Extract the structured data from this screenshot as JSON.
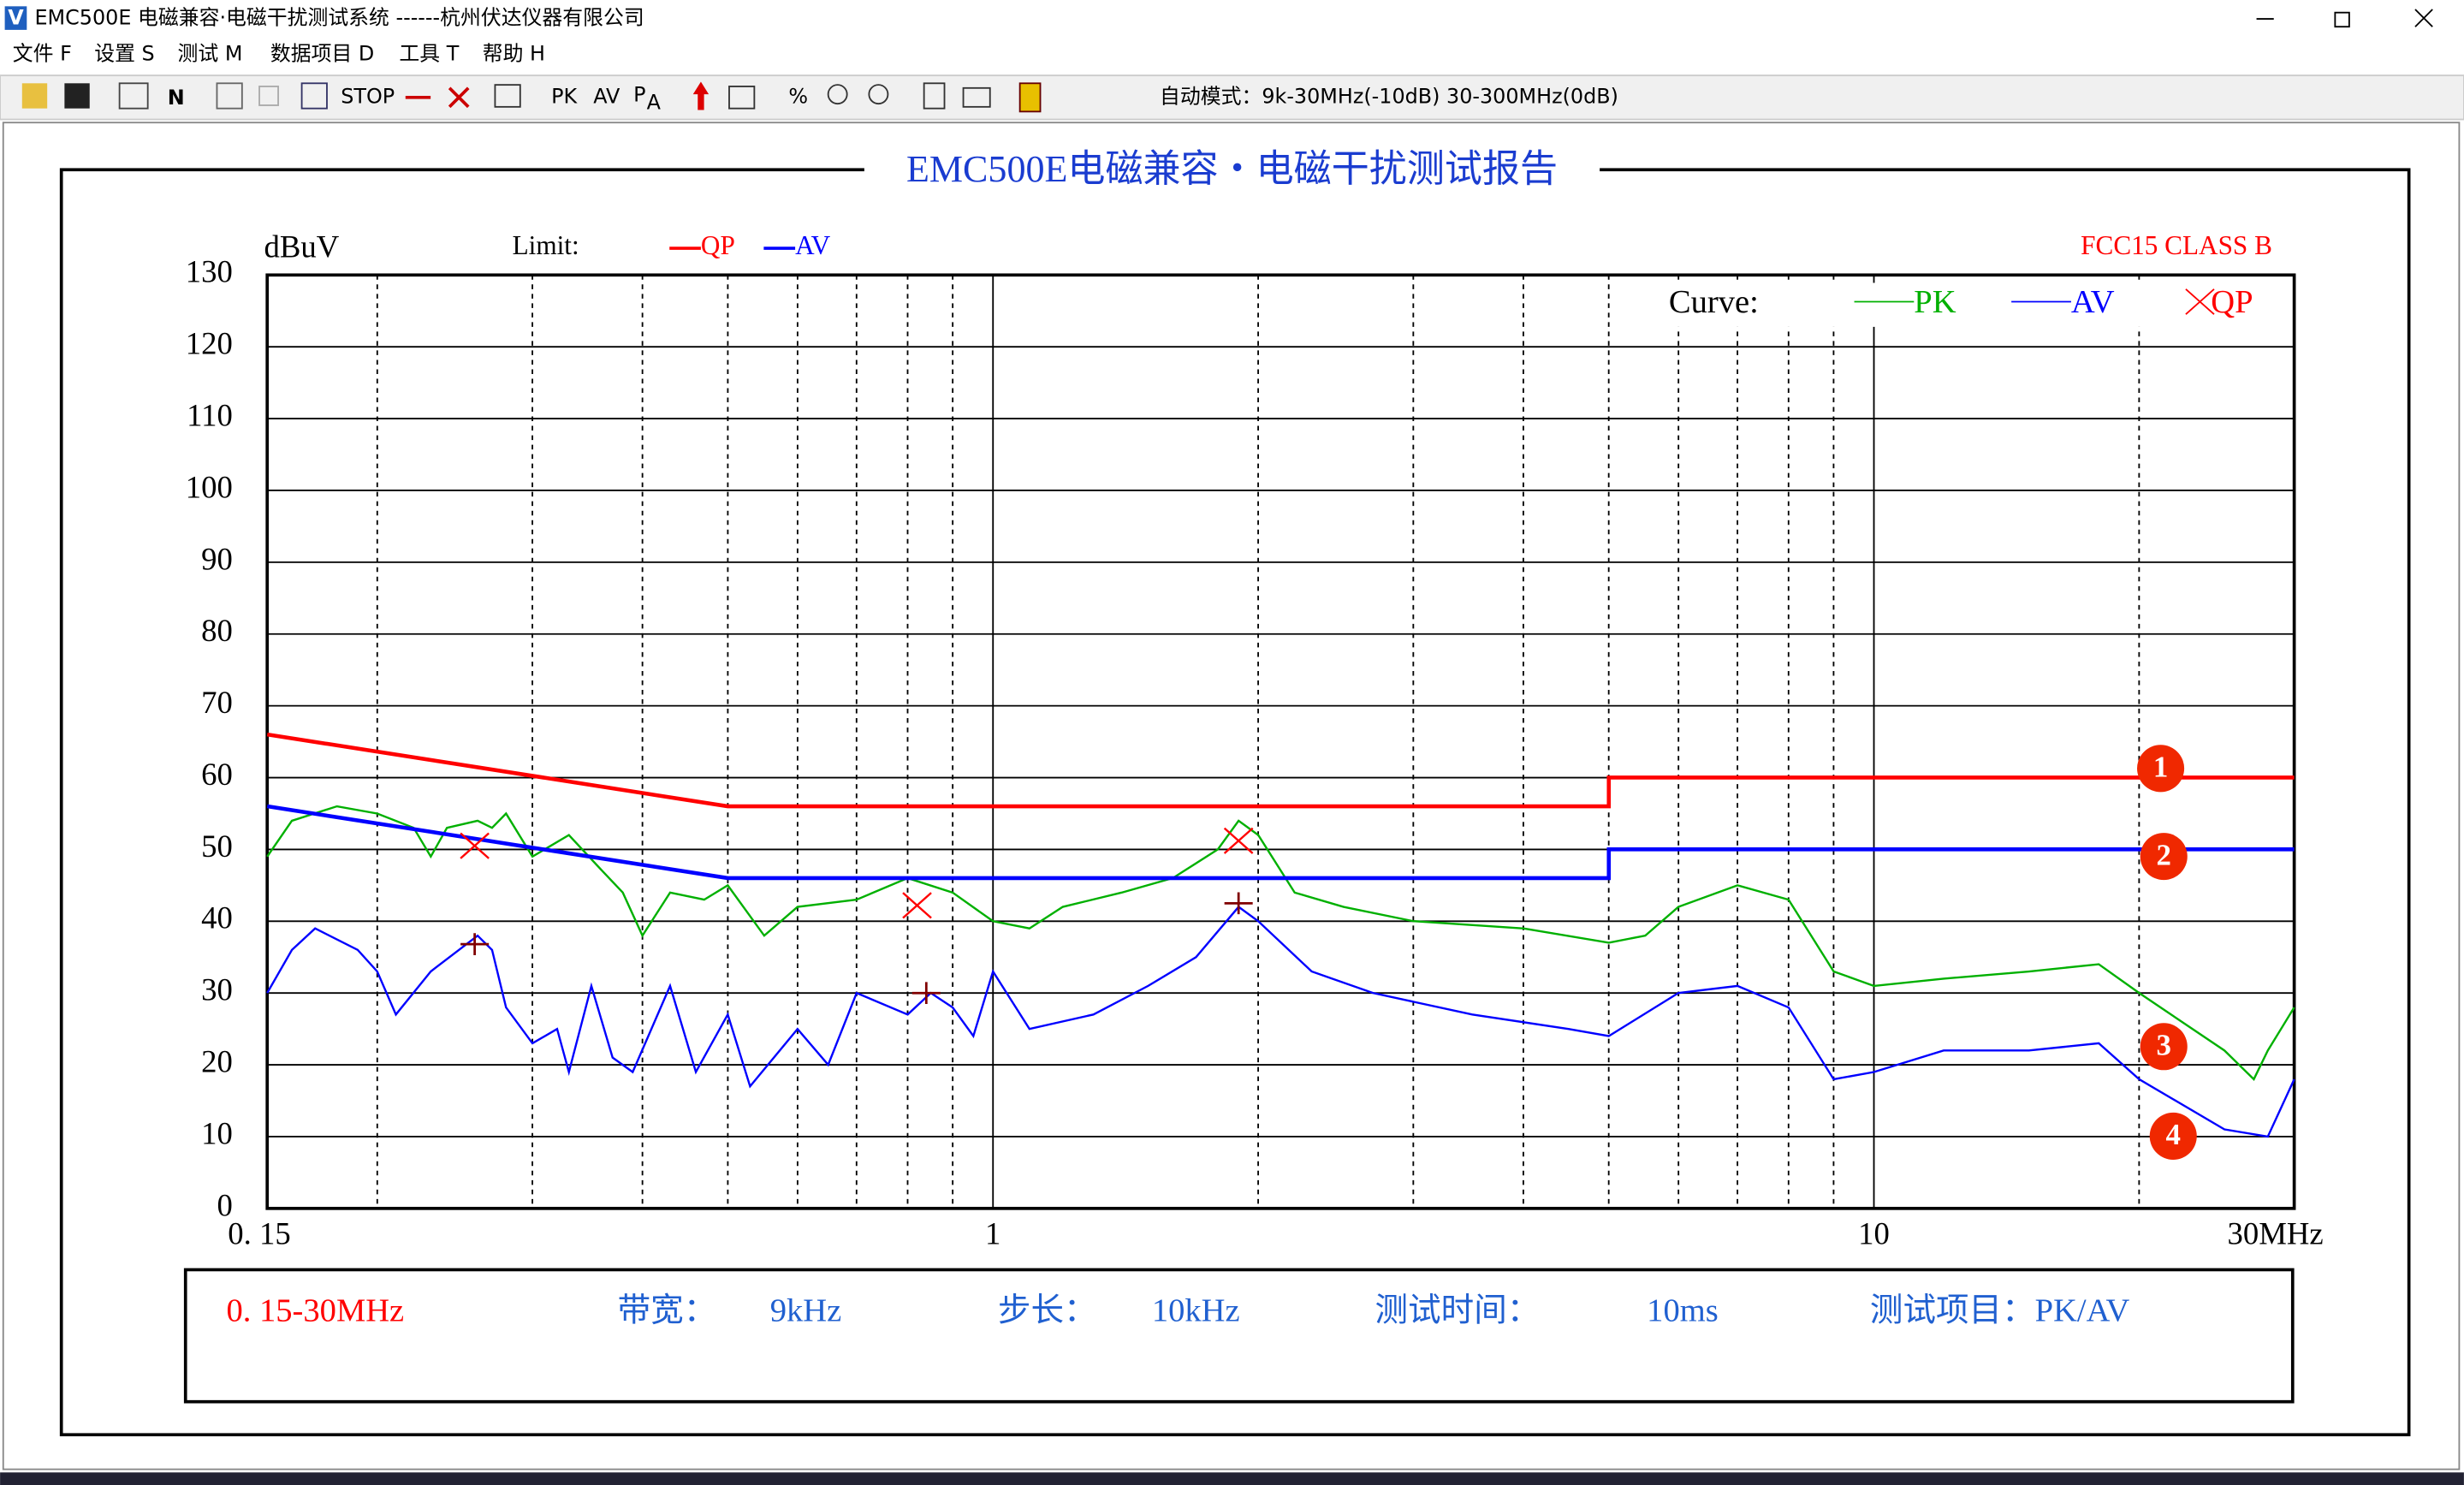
{
  "window": {
    "icon": "V",
    "title": "EMC500E 电磁兼容·电磁干扰测试系统  ------杭州伏达仪器有限公司"
  },
  "menu": [
    "文件 F",
    "设置 S",
    "测试 M",
    "数据项目 D",
    "工具 T",
    "帮助 H"
  ],
  "toolbar": {
    "buttons": [
      "N",
      "STOP",
      "PK",
      "AV",
      "P",
      "A"
    ],
    "auto_mode": "自动模式：9k-30MHz(-10dB) 30-300MHz(0dB)"
  },
  "report_title": "EMC500E电磁兼容・电磁干扰测试报告",
  "chart_data": {
    "type": "line",
    "ylabel": "dBuV",
    "standard": "FCC15 CLASS B",
    "limit_legend_title": "Limit:",
    "curve_legend_title": "Curve:",
    "xscale": "log",
    "xlim": [
      0.15,
      30
    ],
    "xticks": [
      {
        "value": 0.15,
        "label": "0. 15"
      },
      1,
      10,
      {
        "value": 30,
        "label": "30MHz"
      }
    ],
    "x_minor_grid": [
      0.2,
      0.3,
      0.4,
      0.5,
      0.6,
      0.7,
      0.8,
      0.9,
      2,
      3,
      4,
      5,
      6,
      7,
      8,
      9,
      20
    ],
    "ylim": [
      0,
      130
    ],
    "yticks": [
      0,
      10,
      20,
      30,
      40,
      50,
      60,
      70,
      80,
      90,
      100,
      110,
      120,
      130
    ],
    "grid": true,
    "series": [
      {
        "name": "QP",
        "group": "limit",
        "style": "line",
        "color": "#ff0000",
        "x": [
          0.15,
          0.5,
          5,
          5,
          30
        ],
        "values": [
          66,
          56,
          56,
          60,
          60
        ]
      },
      {
        "name": "AV",
        "group": "limit",
        "style": "line",
        "color": "#0000ff",
        "x": [
          0.15,
          0.5,
          5,
          5,
          30
        ],
        "values": [
          56,
          46,
          46,
          50,
          50
        ]
      },
      {
        "name": "PK",
        "group": "curve",
        "style": "line",
        "color": "#00b000",
        "x": [
          0.15,
          0.16,
          0.18,
          0.2,
          0.22,
          0.23,
          0.24,
          0.26,
          0.27,
          0.28,
          0.3,
          0.33,
          0.36,
          0.38,
          0.4,
          0.43,
          0.47,
          0.5,
          0.55,
          0.6,
          0.7,
          0.8,
          0.9,
          1.0,
          1.1,
          1.2,
          1.4,
          1.6,
          1.8,
          1.9,
          2.0,
          2.2,
          2.5,
          3,
          4,
          5,
          5.5,
          6,
          7,
          8,
          9,
          10,
          12,
          15,
          18,
          20,
          25,
          27,
          28,
          30
        ],
        "values": [
          49,
          54,
          56,
          55,
          53,
          49,
          53,
          54,
          53,
          55,
          49,
          52,
          47,
          44,
          38,
          44,
          43,
          45,
          38,
          42,
          43,
          46,
          44,
          40,
          39,
          42,
          44,
          46,
          50,
          54,
          52,
          44,
          42,
          40,
          39,
          37,
          38,
          42,
          45,
          43,
          33,
          31,
          32,
          33,
          34,
          30,
          22,
          18,
          22,
          28
        ]
      },
      {
        "name": "AV",
        "group": "curve",
        "style": "line",
        "color": "#0000ff",
        "x": [
          0.15,
          0.16,
          0.17,
          0.19,
          0.2,
          0.21,
          0.23,
          0.26,
          0.27,
          0.28,
          0.3,
          0.32,
          0.33,
          0.35,
          0.37,
          0.39,
          0.43,
          0.46,
          0.5,
          0.53,
          0.6,
          0.65,
          0.7,
          0.8,
          0.85,
          0.9,
          0.95,
          1.0,
          1.1,
          1.3,
          1.5,
          1.7,
          1.9,
          2.0,
          2.3,
          2.7,
          3.5,
          4.5,
          5,
          6,
          7,
          8,
          9,
          10,
          12,
          15,
          18,
          20,
          25,
          28,
          30
        ],
        "values": [
          30,
          36,
          39,
          36,
          33,
          27,
          33,
          38,
          36,
          28,
          23,
          25,
          19,
          31,
          21,
          19,
          31,
          19,
          27,
          17,
          25,
          20,
          30,
          27,
          30,
          28,
          24,
          33,
          25,
          27,
          31,
          35,
          42,
          40,
          33,
          30,
          27,
          25,
          24,
          30,
          31,
          28,
          18,
          19,
          22,
          22,
          23,
          18,
          11,
          10,
          18
        ]
      },
      {
        "name": "QP",
        "group": "curve",
        "style": "x",
        "color": "#ff0000",
        "x": [
          0.258,
          0.82,
          1.9
        ],
        "values": [
          50.5,
          42.2,
          51.2
        ]
      },
      {
        "group": "none",
        "style": "+",
        "color": "#800000",
        "x": [
          0.258,
          0.84,
          1.9
        ],
        "values": [
          36.8,
          30,
          42.5
        ]
      }
    ],
    "annotations": [
      "1",
      "2",
      "3",
      "4"
    ]
  },
  "info": {
    "range": "0. 15-30MHz",
    "bandwidth_label": "带宽：",
    "bandwidth": "9kHz",
    "step_label": "步长：",
    "step": "10kHz",
    "time_label": "测试时间：",
    "time": "10ms",
    "item_label": "测试项目：PK/AV"
  }
}
